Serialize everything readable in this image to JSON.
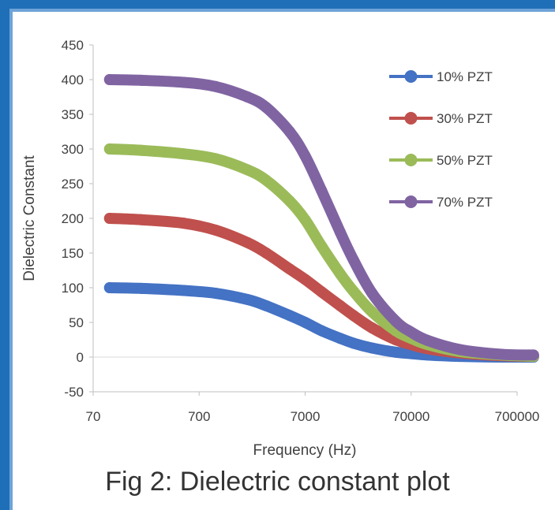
{
  "caption": "Fig 2: Dielectric constant plot",
  "colors": {
    "frame": "#1F6FB8",
    "frame_inner": "#6FA3D8"
  },
  "chart_data": {
    "type": "scatter",
    "xlabel": "Frequency (Hz)",
    "ylabel": "Dielectric Constant",
    "x_scale": "log",
    "xlim": [
      70,
      700000
    ],
    "ylim": [
      -50,
      450
    ],
    "x_ticks": [
      70,
      700,
      7000,
      70000,
      700000
    ],
    "x_tick_labels": [
      "70",
      "700",
      "7000",
      "70000",
      "700000"
    ],
    "y_ticks": [
      -50,
      0,
      50,
      100,
      150,
      200,
      250,
      300,
      350,
      400,
      450
    ],
    "y_tick_labels": [
      "-50",
      "0",
      "50",
      "100",
      "150",
      "200",
      "250",
      "300",
      "350",
      "400",
      "450"
    ],
    "grid": false,
    "legend_position": "top-right",
    "x": [
      100,
      200,
      500,
      1000,
      2000,
      3000,
      5000,
      7000,
      10000,
      15000,
      20000,
      30000,
      50000,
      70000,
      100000,
      200000,
      500000,
      1000000
    ],
    "series": [
      {
        "name": "10% PZT",
        "color": "#4472C4",
        "values": [
          100,
          99,
          96,
          92,
          83,
          74,
          60,
          50,
          38,
          27,
          20,
          13,
          7,
          5,
          3,
          1,
          0,
          0
        ]
      },
      {
        "name": "30% PZT",
        "color": "#C0504D",
        "values": [
          200,
          198,
          193,
          183,
          165,
          150,
          127,
          112,
          94,
          74,
          60,
          42,
          25,
          18,
          12,
          6,
          2,
          1
        ]
      },
      {
        "name": "50% PZT",
        "color": "#9BBB59",
        "values": [
          300,
          298,
          293,
          286,
          270,
          255,
          225,
          198,
          160,
          120,
          95,
          65,
          38,
          27,
          18,
          8,
          3,
          1
        ]
      },
      {
        "name": "70% PZT",
        "color": "#8064A2",
        "values": [
          400,
          399,
          396,
          390,
          375,
          360,
          325,
          290,
          240,
          180,
          140,
          92,
          52,
          36,
          24,
          11,
          4,
          3
        ]
      }
    ]
  }
}
